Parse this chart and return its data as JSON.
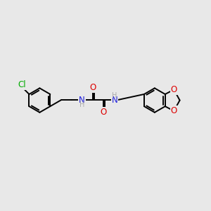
{
  "background_color": "#e8e8e8",
  "figsize": [
    3.0,
    3.0
  ],
  "dpi": 100,
  "atom_colors": {
    "C": "#000000",
    "N": "#2020dd",
    "O": "#dd0000",
    "Cl": "#00aa00",
    "H": "#aaaaaa"
  },
  "bond_color": "#000000",
  "bond_width": 1.4,
  "font_size": 8.5,
  "font_size_h": 7.0
}
